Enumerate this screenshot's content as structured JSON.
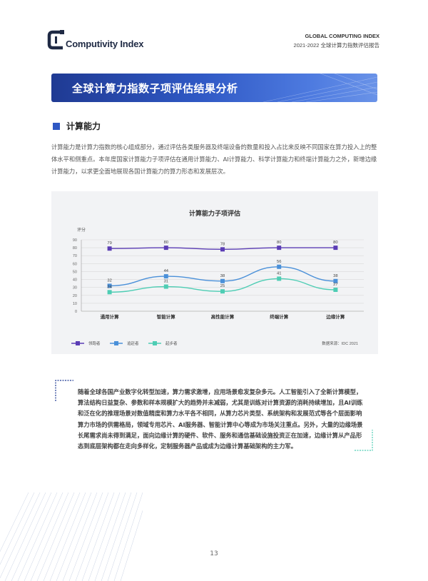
{
  "header": {
    "logo_text": "Computivity Index",
    "report_en": "GLOBAL COMPUTING INDEX",
    "report_cn": "2021-2022 全球计算力指数评估报告"
  },
  "banner": {
    "title": "全球计算力指数子项评估结果分析"
  },
  "section": {
    "title": "计算能力"
  },
  "intro": {
    "text": "计算能力是计算力指数的核心组成部分，通过评估各类服务器及终端设备的数量和投入占比来反映不同国家在算力投入上的整体水平和侧重点。本年度国家计算能力子项评估在通用计算能力、AI计算能力、科学计算能力和终端计算能力之外，新增边缘计算能力，以求更全面地展现各国计算能力的算力形态和发展层次。"
  },
  "chart_data": {
    "type": "line",
    "title": "计算能力子项评估",
    "ylabel": "评分",
    "ylim": [
      0,
      90
    ],
    "yticks": [
      0,
      10,
      20,
      30,
      40,
      50,
      60,
      70,
      80,
      90
    ],
    "categories": [
      "通用计算",
      "智能计算",
      "高性能计算",
      "终端计算",
      "边缘计算"
    ],
    "series": [
      {
        "name": "领跑者",
        "values": [
          79,
          80,
          78,
          80,
          80
        ],
        "color": "#5b3db5"
      },
      {
        "name": "追赶者",
        "values": [
          32,
          44,
          38,
          56,
          38
        ],
        "color": "#4a90d9"
      },
      {
        "name": "起步者",
        "values": [
          24,
          31,
          25,
          41,
          27
        ],
        "color": "#4ecdb4"
      }
    ],
    "source": "数据来源：IDC 2021",
    "grid": true,
    "legend_position": "bottom-left"
  },
  "note": {
    "text": "随着全球各国产业数字化转型加速，算力需求激增，应用场景愈发复杂多元。人工智能引入了全新计算模型，算法结构日益复杂、参数和样本规模扩大的趋势并未减弱，尤其是训练对计算资源的消耗持续增加，且AI训练和泛在化的推理场景对数值精度和算力水平各不相同，从算力芯片类型、系统架构和发展范式等各个层面影响算力市场的供需格局，领域专用芯片、AI服务器、智能计算中心等成为市场关注重点。另外，大量的边缘场景长尾需求尚未得到满足，面向边缘计算的硬件、软件、服务和通信基础设施投资正在加速，边缘计算从产品形态到底层架构都在走向多样化，定制服务器产品或成为边缘计算基础架构的主力军。"
  },
  "footer": {
    "page_number": "13"
  }
}
